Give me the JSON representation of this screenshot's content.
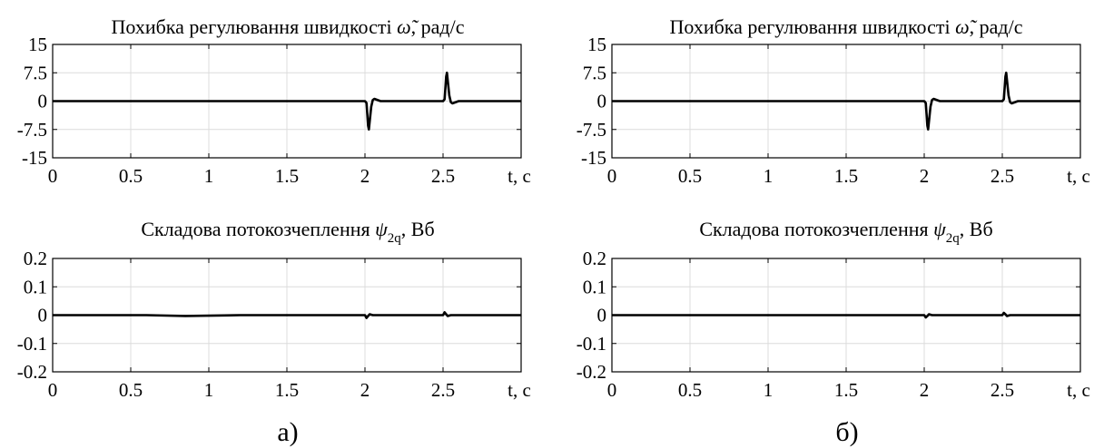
{
  "chart_data": [
    {
      "type": "line",
      "title": {
        "main": "Похибка регулювання швидкості",
        "symbol": "ω̃",
        "unit": ", рад/с"
      },
      "xlabel": "t, с",
      "xlim": [
        0,
        3
      ],
      "ylim": [
        -15,
        15
      ],
      "xticks": [
        0,
        0.5,
        1,
        1.5,
        2,
        2.5
      ],
      "xtick_labels": [
        "0",
        "0.5",
        "1",
        "1.5",
        "2",
        "2.5"
      ],
      "yticks": [
        15,
        7.5,
        0,
        -7.5,
        -15
      ],
      "ytick_labels": [
        "15",
        "7.5",
        "0",
        "-7.5",
        "-15"
      ],
      "grid": true,
      "series": [
        {
          "x": [
            0,
            2.0,
            2.01,
            2.02,
            2.025,
            2.03,
            2.04,
            2.05,
            2.06,
            2.08,
            2.1,
            2.5,
            2.51,
            2.52,
            2.525,
            2.53,
            2.54,
            2.55,
            2.56,
            2.58,
            2.6,
            3.0
          ],
          "y": [
            0,
            0,
            -0.5,
            -6.5,
            -7.5,
            -5.5,
            -1.5,
            0.3,
            0.6,
            0.3,
            0,
            0,
            0.5,
            6.5,
            7.5,
            5.5,
            1.5,
            -0.3,
            -0.6,
            -0.3,
            0,
            0
          ]
        }
      ]
    },
    {
      "type": "line",
      "title": {
        "main": "Складова потокозчеплення",
        "symbol": "ψ",
        "subscript": "2q",
        "unit": ", Вб"
      },
      "xlabel": "t, с",
      "xlim": [
        0,
        3
      ],
      "ylim": [
        -0.2,
        0.2
      ],
      "xticks": [
        0,
        0.5,
        1,
        1.5,
        2,
        2.5
      ],
      "xtick_labels": [
        "0",
        "0.5",
        "1",
        "1.5",
        "2",
        "2.5"
      ],
      "yticks": [
        0.2,
        0.1,
        0,
        -0.1,
        -0.2
      ],
      "ytick_labels": [
        "0.2",
        "0.1",
        "0",
        "-0.1",
        "-0.2"
      ],
      "grid": true,
      "series": [
        {
          "x": [
            0,
            0.6,
            0.85,
            1.2,
            2.0,
            2.01,
            2.02,
            2.03,
            2.05,
            2.5,
            2.51,
            2.52,
            2.53,
            2.55,
            3.0
          ],
          "y": [
            0,
            0,
            -0.003,
            0,
            0,
            -0.01,
            -0.003,
            0.003,
            0,
            0,
            0.01,
            0.003,
            -0.003,
            0,
            0
          ]
        }
      ]
    },
    {
      "type": "line",
      "title": {
        "main": "Похибка регулювання швидкості",
        "symbol": "ω̃",
        "unit": ", рад/с"
      },
      "xlabel": "t, с",
      "xlim": [
        0,
        3
      ],
      "ylim": [
        -15,
        15
      ],
      "xticks": [
        0,
        0.5,
        1,
        1.5,
        2,
        2.5
      ],
      "xtick_labels": [
        "0",
        "0.5",
        "1",
        "1.5",
        "2",
        "2.5"
      ],
      "yticks": [
        15,
        7.5,
        0,
        -7.5,
        -15
      ],
      "ytick_labels": [
        "15",
        "7.5",
        "0",
        "-7.5",
        "-15"
      ],
      "grid": true,
      "series": [
        {
          "x": [
            0,
            2.0,
            2.01,
            2.02,
            2.025,
            2.03,
            2.04,
            2.05,
            2.06,
            2.08,
            2.1,
            2.5,
            2.51,
            2.52,
            2.525,
            2.53,
            2.54,
            2.55,
            2.56,
            2.58,
            2.6,
            3.0
          ],
          "y": [
            0,
            0,
            -0.5,
            -6.5,
            -7.5,
            -5.5,
            -1.5,
            0.3,
            0.6,
            0.3,
            0,
            0,
            0.5,
            6.5,
            7.5,
            5.5,
            1.5,
            -0.3,
            -0.6,
            -0.3,
            0,
            0
          ]
        }
      ]
    },
    {
      "type": "line",
      "title": {
        "main": "Складова потокозчеплення",
        "symbol": "ψ",
        "subscript": "2q",
        "unit": ", Вб"
      },
      "xlabel": "t, с",
      "xlim": [
        0,
        3
      ],
      "ylim": [
        -0.2,
        0.2
      ],
      "xticks": [
        0,
        0.5,
        1,
        1.5,
        2,
        2.5
      ],
      "xtick_labels": [
        "0",
        "0.5",
        "1",
        "1.5",
        "2",
        "2.5"
      ],
      "yticks": [
        0.2,
        0.1,
        0,
        -0.1,
        -0.2
      ],
      "ytick_labels": [
        "0.2",
        "0.1",
        "0",
        "-0.1",
        "-0.2"
      ],
      "grid": true,
      "series": [
        {
          "x": [
            0,
            2.0,
            2.01,
            2.02,
            2.03,
            2.05,
            2.5,
            2.51,
            2.52,
            2.53,
            2.55,
            3.0
          ],
          "y": [
            0,
            0,
            -0.008,
            -0.003,
            0.003,
            0,
            0,
            0.008,
            0.003,
            -0.003,
            0,
            0
          ]
        }
      ]
    }
  ],
  "captions": [
    "а)",
    "б)"
  ]
}
